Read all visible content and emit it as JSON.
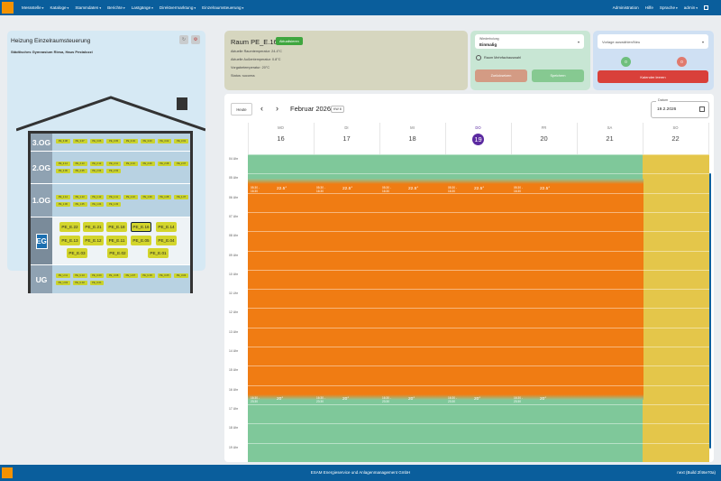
{
  "topbar": {
    "menu": [
      "Messstelle",
      "Kataloge",
      "Stammdaten",
      "Berichte",
      "Lastgänge",
      "Direktvermarktung",
      "Einzelraumsteuerung"
    ],
    "right": [
      "Administration",
      "Hilfe",
      "Sprache",
      "admin"
    ]
  },
  "building": {
    "title": "Heizung Einzelraumsteuerung",
    "subtitle": "Städtisches Gymnasium Riesa, Haus Pestalozzi",
    "floors": [
      {
        "label": "3.OG",
        "rooms": [
          "PE_3.08",
          "PE_3.07",
          "PE_3.06",
          "PE_3.05",
          "PE_3.04",
          "PE_3.03",
          "PE_3.02",
          "PE_3.01"
        ]
      },
      {
        "label": "2.OG",
        "rooms": [
          "PE_2.14",
          "PE_2.13",
          "PE_2.12",
          "PE_2.11",
          "PE_2.10",
          "PE_2.09",
          "PE_2.08",
          "PE_2.07",
          "PE_2.06",
          "PE_2.05",
          "PE_2.04",
          "PE_2.03"
        ]
      },
      {
        "label": "1.OG",
        "rooms": [
          "PE_1.14",
          "PE_1.13",
          "PE_1.12",
          "PE_1.11",
          "PE_1.10",
          "PE_1.09",
          "PE_1.08",
          "PE_1.07",
          "PE_1.06",
          "PE_1.05",
          "PE_1.04",
          "PE_1.03"
        ]
      },
      {
        "label": "EG",
        "rooms": [
          "PE_E.22",
          "PE_E.21",
          "PE_E.18",
          "PE_E.16",
          "PE_E.14",
          "PE_E.13",
          "PE_E.12",
          "PE_E.11",
          "PE_E.05",
          "PE_E.04",
          "PE_E.03",
          "PE_E.02",
          "PE_E.01"
        ]
      },
      {
        "label": "UG",
        "rooms": [
          "PE_U.11",
          "PE_U.10",
          "PE_U.09",
          "PE_U.08",
          "PE_U.07",
          "PE_U.06",
          "PE_U.05",
          "PE_U.04",
          "PE_U.03",
          "PE_U.02",
          "PE_U.01"
        ]
      }
    ]
  },
  "room": {
    "title": "Raum PE_E.16",
    "refresh": "Aktualisieren",
    "lines": [
      "Aktuelle Raumtemperatur: 24.4°C",
      "Aktuelle Außentemperatur: 0.8°C",
      "Vorgabetemperatur: 20°C",
      "Status: success"
    ]
  },
  "repeat": {
    "label": "Wiederholung",
    "value": "Einmalig",
    "multi": "Raum Mehrfachauswahl",
    "reset": "Zurücksetzen",
    "save": "Speichern"
  },
  "template": {
    "placeholder": "Vorlage auswählen/Neu",
    "count_a": "0",
    "count_b": "0",
    "clear": "Kalender leeren"
  },
  "calendar": {
    "today": "Heute",
    "month": "Februar 2026",
    "kw": "KW 8",
    "date_label": "Datum",
    "date_value": "19.2.2026",
    "days": [
      {
        "name": "MO",
        "num": "16"
      },
      {
        "name": "DI",
        "num": "17"
      },
      {
        "name": "MI",
        "num": "18"
      },
      {
        "name": "DO",
        "num": "19"
      },
      {
        "name": "FR",
        "num": "20"
      },
      {
        "name": "SA",
        "num": "21"
      },
      {
        "name": "SO",
        "num": "22"
      }
    ],
    "current_day_index": 3,
    "hours": [
      "04 Uhr",
      "05 Uhr",
      "06 Uhr",
      "07 Uhr",
      "08 Uhr",
      "09 Uhr",
      "10 Uhr",
      "11 Uhr",
      "12 Uhr",
      "13 Uhr",
      "14 Uhr",
      "15 Uhr",
      "16 Uhr",
      "17 Uhr",
      "18 Uhr",
      "19 Uhr"
    ],
    "day_events": [
      {
        "time": "05:30 - 16:30",
        "temp": "22.5°"
      },
      {
        "time": "16:30 - 23:30",
        "temp": "20°"
      }
    ],
    "colors": {
      "comfort": "#f07c13",
      "eco": "#7fc89a",
      "weekend": "#e4c64a"
    }
  },
  "footer": {
    "company": "ESAM Energieservice und Anlagenmanagement GmbH",
    "version": "next (Build 2f46e70a)"
  }
}
